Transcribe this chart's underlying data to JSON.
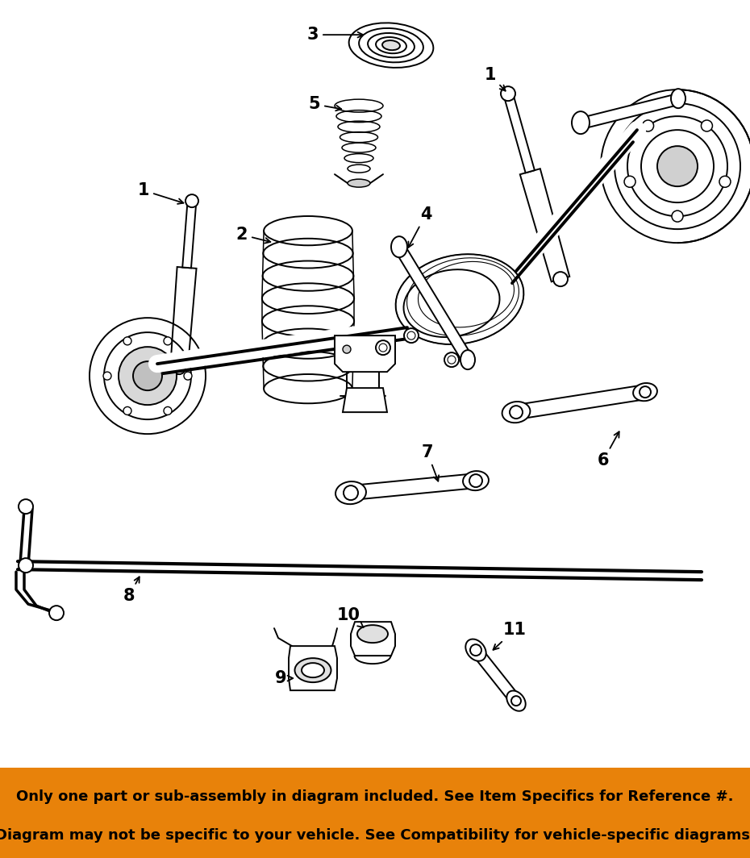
{
  "background_color": "#ffffff",
  "footer_bg_color": "#e8820a",
  "footer_text_line1": "Only one part or sub-assembly in diagram included. See Item Specifics for Reference #.",
  "footer_text_line2": "Diagram may not be specific to your vehicle. See Compatibility for vehicle-specific diagrams.",
  "footer_text_color": "#000000",
  "footer_font_size": 13.0,
  "fig_width": 9.3,
  "fig_height": 10.64,
  "dpi": 100
}
